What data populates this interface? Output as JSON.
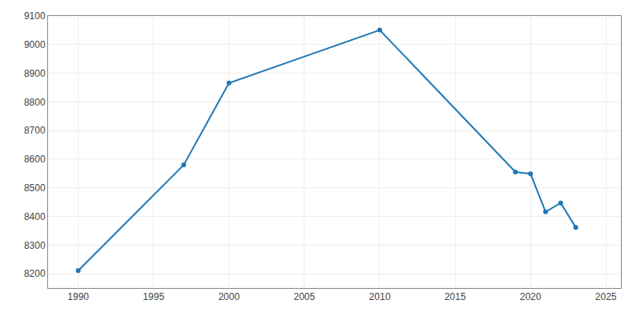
{
  "chart_data": {
    "type": "line",
    "x": [
      1990,
      1997,
      2000,
      2010,
      2019,
      2020,
      2021,
      2022,
      2023
    ],
    "values": [
      8211,
      8580,
      8866,
      9051,
      8555,
      8549,
      8416,
      8447,
      8362
    ],
    "marker": "circle",
    "xlim": [
      1988,
      2026
    ],
    "ylim": [
      8150,
      9100
    ],
    "xticks": [
      1990,
      1995,
      2000,
      2005,
      2010,
      2015,
      2020,
      2025
    ],
    "yticks": [
      8200,
      8300,
      8400,
      8500,
      8600,
      8700,
      8800,
      8900,
      9000,
      9100
    ],
    "grid": true
  }
}
